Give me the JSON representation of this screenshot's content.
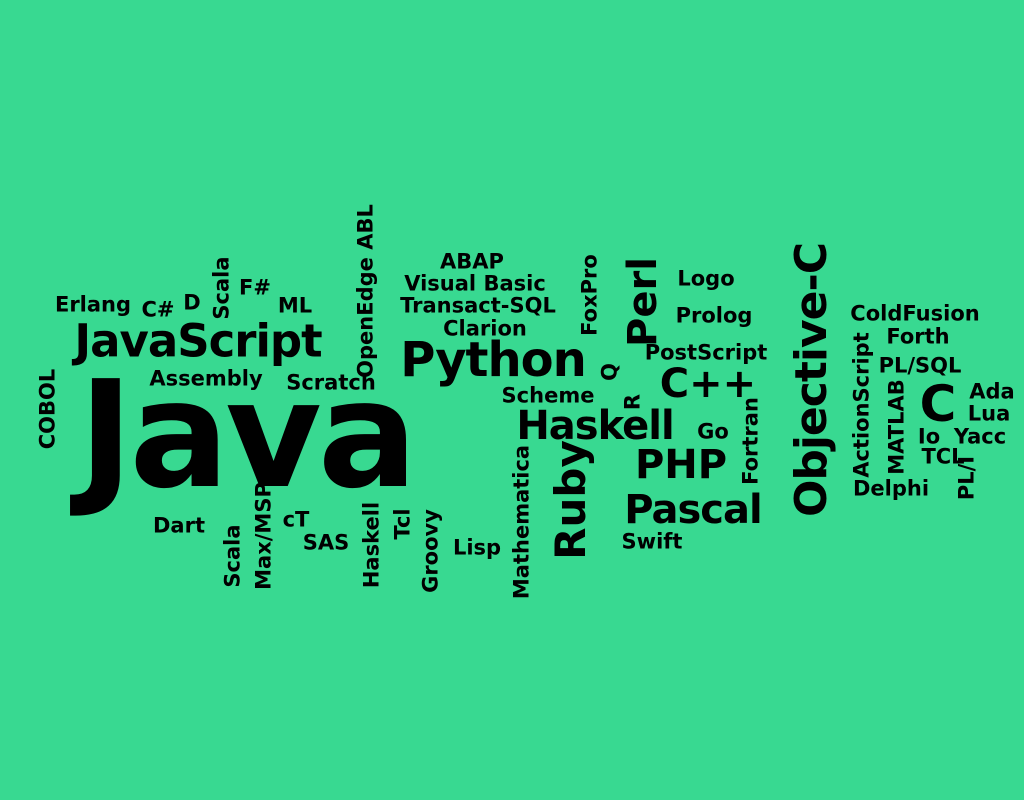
{
  "colors": {
    "background": "#38d991",
    "text": "#000000"
  },
  "words": [
    "Java",
    "JavaScript",
    "Python",
    "Haskell",
    "Ruby",
    "Pascal",
    "PHP",
    "C++",
    "Objective-C",
    "C",
    "Perl",
    "Erlang",
    "C#",
    "D",
    "Scala",
    "F#",
    "ML",
    "OpenEdge ABL",
    "ABAP",
    "Visual Basic",
    "Transact-SQL",
    "Clarion",
    "FoxPro",
    "Logo",
    "Prolog",
    "ColdFusion",
    "Forth",
    "PL/SQL",
    "Ada",
    "Lua",
    "Io",
    "Yacc",
    "TCL",
    "PL/I",
    "Delphi",
    "MATLAB",
    "ActionScript",
    "Fortran",
    "Go",
    "Swift",
    "Mathematica",
    "Lisp",
    "Groovy",
    "Tcl",
    "Haskell",
    "SAS",
    "cT",
    "Max/MSP",
    "Scala",
    "Dart",
    "Assembly",
    "Scratch",
    "COBOL",
    "Scheme",
    "R",
    "Q",
    "PostScript"
  ]
}
